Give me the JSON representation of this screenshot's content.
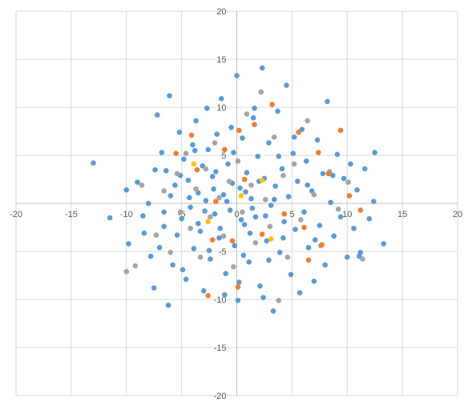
{
  "chart_data": {
    "type": "scatter",
    "title": "",
    "xlabel": "",
    "ylabel": "",
    "xlim": [
      -20,
      20
    ],
    "ylim": [
      -20,
      20
    ],
    "x_ticks": [
      -20,
      -15,
      -10,
      -5,
      0,
      5,
      10,
      15,
      20
    ],
    "y_ticks": [
      -20,
      -15,
      -10,
      -5,
      0,
      5,
      10,
      15,
      20
    ],
    "grid": true,
    "legend": "none",
    "series": [
      {
        "color": "#5b9bd5",
        "points": [
          [
            -13,
            4.2
          ],
          [
            -11.5,
            -1.5
          ],
          [
            -10,
            1.4
          ],
          [
            -9.8,
            -4.2
          ],
          [
            -9,
            2.2
          ],
          [
            -8.5,
            -1.3
          ],
          [
            -8,
            0
          ],
          [
            -7.8,
            -5.5
          ],
          [
            -7.5,
            -8.8
          ],
          [
            -7.2,
            9.2
          ],
          [
            -7,
            -4.6
          ],
          [
            -6.8,
            5.3
          ],
          [
            -6.6,
            -2.4
          ],
          [
            -6.4,
            3.4
          ],
          [
            -6.2,
            -10.6
          ],
          [
            -6.1,
            11.2
          ],
          [
            -6,
            0.8
          ],
          [
            -5.8,
            -6.4
          ],
          [
            -5.6,
            1.9
          ],
          [
            -5.4,
            -3.3
          ],
          [
            -5.2,
            7.4
          ],
          [
            -5,
            -1.6
          ],
          [
            -4.8,
            4.6
          ],
          [
            -4.6,
            -7.9
          ],
          [
            -4.4,
            2.4
          ],
          [
            -4.2,
            -0.4
          ],
          [
            -4,
            6.1
          ],
          [
            -3.9,
            -4.7
          ],
          [
            -3.7,
            8.6
          ],
          [
            -3.5,
            1.1
          ],
          [
            -3.3,
            -2.9
          ],
          [
            -3.1,
            3.9
          ],
          [
            -3,
            -9.1
          ],
          [
            -2.8,
            0.3
          ],
          [
            -2.6,
            5.6
          ],
          [
            -2.4,
            -5.8
          ],
          [
            -2.2,
            2.8
          ],
          [
            -2,
            -1.1
          ],
          [
            -1.8,
            7.2
          ],
          [
            -1.6,
            -3.6
          ],
          [
            -1.4,
            10.9
          ],
          [
            -1.2,
            0.9
          ],
          [
            -1,
            -7.3
          ],
          [
            -0.8,
            4.1
          ],
          [
            -0.6,
            -0.7
          ],
          [
            -0.4,
            2.1
          ],
          [
            -0.2,
            -4.4
          ],
          [
            0,
            13.3
          ],
          [
            0.1,
            -10.1
          ],
          [
            0.3,
            1.6
          ],
          [
            0.5,
            6.8
          ],
          [
            0.7,
            -2.2
          ],
          [
            0.9,
            3.2
          ],
          [
            1.1,
            -6.1
          ],
          [
            1.3,
            0.5
          ],
          [
            1.5,
            8.9
          ],
          [
            1.7,
            -1.4
          ],
          [
            1.9,
            4.9
          ],
          [
            2.1,
            -8.6
          ],
          [
            2.3,
            14.1
          ],
          [
            2.5,
            2.6
          ],
          [
            2.7,
            -3.9
          ],
          [
            2.9,
            6.3
          ],
          [
            3.1,
            -0.2
          ],
          [
            3.3,
            -11.2
          ],
          [
            3.5,
            1.8
          ],
          [
            3.7,
            9.6
          ],
          [
            3.9,
            -5.1
          ],
          [
            4.1,
            3.6
          ],
          [
            4.3,
            -1.9
          ],
          [
            4.5,
            12.3
          ],
          [
            4.7,
            0.7
          ],
          [
            4.9,
            -7.4
          ],
          [
            5.1,
            5.2
          ],
          [
            5.3,
            -2.7
          ],
          [
            5.5,
            2.3
          ],
          [
            5.7,
            -9.3
          ],
          [
            5.9,
            7.7
          ],
          [
            6.1,
            -0.9
          ],
          [
            6.3,
            4.4
          ],
          [
            6.5,
            -4.6
          ],
          [
            6.8,
            1.3
          ],
          [
            7,
            -8.1
          ],
          [
            7.3,
            6.6
          ],
          [
            7.5,
            -2.3
          ],
          [
            7.8,
            3.1
          ],
          [
            8,
            -6.4
          ],
          [
            8.2,
            10.6
          ],
          [
            8.5,
            0.1
          ],
          [
            8.8,
            -3.4
          ],
          [
            9.1,
            5.1
          ],
          [
            9.4,
            -1.4
          ],
          [
            9.7,
            2.6
          ],
          [
            10,
            -5.6
          ],
          [
            10.3,
            4.1
          ],
          [
            10.6,
            -2.6
          ],
          [
            10.9,
            1.4
          ],
          [
            11.2,
            -5.1
          ],
          [
            11.6,
            3.6
          ],
          [
            12,
            -1.6
          ],
          [
            12.5,
            5.3
          ],
          [
            13.3,
            -4.2
          ],
          [
            12.4,
            0.2
          ],
          [
            11.1,
            -5.5
          ],
          [
            -3.5,
            -2.1
          ],
          [
            -2.9,
            -0.8
          ],
          [
            -2.1,
            1.5
          ],
          [
            -1.5,
            -2.6
          ],
          [
            -0.9,
            0.2
          ],
          [
            0.4,
            -1.7
          ],
          [
            0.8,
            1.2
          ],
          [
            1.4,
            -0.5
          ],
          [
            2,
            2.3
          ],
          [
            2.6,
            -1.3
          ],
          [
            -4.3,
            0.6
          ],
          [
            -1.9,
            3.3
          ],
          [
            1.2,
            -3.1
          ],
          [
            3.4,
            0.4
          ],
          [
            -0.3,
            5.3
          ],
          [
            0.6,
            -5.4
          ],
          [
            -5.1,
            2.9
          ],
          [
            4.2,
            -3.6
          ],
          [
            -2.5,
            -4.9
          ],
          [
            3.8,
            4.9
          ],
          [
            -3.8,
            5.5
          ],
          [
            2.9,
            -5.9
          ],
          [
            -6.6,
            -0.9
          ],
          [
            6.4,
            1.9
          ],
          [
            -7.4,
            3.5
          ],
          [
            7.1,
            -3.8
          ],
          [
            -1.1,
            -9.5
          ],
          [
            1.6,
            9.9
          ],
          [
            -8.4,
            -3.1
          ],
          [
            8.7,
            2.9
          ],
          [
            -4.9,
            -6.9
          ],
          [
            5.2,
            6.9
          ],
          [
            -0.5,
            7.9
          ],
          [
            0.2,
            -8.2
          ],
          [
            -2.7,
            9.9
          ],
          [
            2.4,
            -9.8
          ]
        ]
      },
      {
        "color": "#a5a5a5",
        "points": [
          [
            -10,
            -7.1
          ],
          [
            -9.2,
            -6.5
          ],
          [
            -8.6,
            1.9
          ],
          [
            -7.3,
            -3.3
          ],
          [
            -6.6,
            1.3
          ],
          [
            -6,
            -5.1
          ],
          [
            -5.4,
            3.1
          ],
          [
            -5.1,
            -0.9
          ],
          [
            -4.6,
            5.2
          ],
          [
            -4.2,
            -2.6
          ],
          [
            -3.7,
            1.5
          ],
          [
            -3.3,
            -5.6
          ],
          [
            -2.8,
            3.6
          ],
          [
            -2.4,
            -1.4
          ],
          [
            -2,
            6.3
          ],
          [
            -1.6,
            0.6
          ],
          [
            -1.2,
            -3.4
          ],
          [
            -0.7,
            2.3
          ],
          [
            -0.3,
            -6.6
          ],
          [
            0.1,
            4.4
          ],
          [
            0.5,
            -0.9
          ],
          [
            0.9,
            9.3
          ],
          [
            1.3,
            1.9
          ],
          [
            1.7,
            -4.1
          ],
          [
            2.2,
            11.6
          ],
          [
            2.6,
            0.4
          ],
          [
            3,
            -2.4
          ],
          [
            3.4,
            6.9
          ],
          [
            3.8,
            -10.1
          ],
          [
            4.2,
            2.9
          ],
          [
            4.6,
            -5.6
          ],
          [
            5.2,
            4.1
          ],
          [
            5.8,
            -1.7
          ],
          [
            6.4,
            8.6
          ],
          [
            7,
            0.9
          ],
          [
            7.6,
            -4.4
          ],
          [
            8.4,
            3.3
          ],
          [
            9.2,
            -0.6
          ],
          [
            10.1,
            2.2
          ],
          [
            11.4,
            -5.8
          ]
        ]
      },
      {
        "color": "#ed7d31",
        "points": [
          [
            -5.5,
            5.2
          ],
          [
            -4.1,
            7.1
          ],
          [
            -3.6,
            3.5
          ],
          [
            -2.6,
            -9.6
          ],
          [
            -1.9,
            0.2
          ],
          [
            -1.1,
            5.6
          ],
          [
            -0.4,
            -3.9
          ],
          [
            0.2,
            7.6
          ],
          [
            0.7,
            2.5
          ],
          [
            1.6,
            8.2
          ],
          [
            2.3,
            -3.2
          ],
          [
            3.2,
            10.3
          ],
          [
            4.3,
            -1.1
          ],
          [
            5.6,
            7.4
          ],
          [
            6.1,
            -2.5
          ],
          [
            6.5,
            -5.9
          ],
          [
            7.4,
            5.3
          ],
          [
            8.3,
            3.1
          ],
          [
            9.4,
            7.6
          ],
          [
            10.2,
            0.8
          ],
          [
            11.2,
            -0.7
          ],
          [
            7.7,
            -4.3
          ],
          [
            0.1,
            -8.7
          ],
          [
            -2.2,
            -3.8
          ]
        ]
      },
      {
        "color": "#ffc000",
        "points": [
          [
            -3.9,
            4.1
          ],
          [
            -2.6,
            -1.9
          ],
          [
            0.4,
            0.8
          ],
          [
            2.3,
            2.4
          ],
          [
            3.1,
            -3.7
          ]
        ]
      }
    ]
  }
}
